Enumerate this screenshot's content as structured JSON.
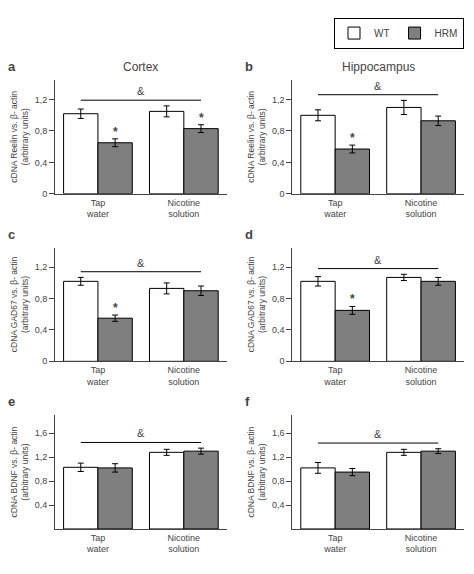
{
  "chart_data": [
    {
      "type": "bar",
      "title": "Cortex",
      "ylabel": "cDNA Reelin vs. β- actin\n(arbitrary units)",
      "categories": [
        "Tap\nwater",
        "Nicotine\nsolution"
      ],
      "series": [
        {
          "name": "WT",
          "color": "#ffffff",
          "values": [
            1.02,
            1.05
          ],
          "errors": [
            0.06,
            0.07
          ]
        },
        {
          "name": "HRM",
          "color": "#7f7f7f",
          "values": [
            0.65,
            0.83
          ],
          "errors": [
            0.05,
            0.05
          ]
        }
      ],
      "ylim": [
        0,
        1.45
      ],
      "yticks": [
        0,
        {
          "value": 0.4,
          "label": "0,4"
        },
        {
          "value": 0.8,
          "label": "0,8"
        },
        {
          "value": 1.2,
          "label": "1,2"
        }
      ],
      "grid": false,
      "annotations": [
        {
          "text": "a"
        },
        {
          "text": "*",
          "series": "HRM",
          "category": "Tap\nwater"
        },
        {
          "text": "*",
          "series": "HRM",
          "category": "Nicotine\nsolution"
        },
        {
          "text": "&",
          "categories": [
            "Tap\nwater",
            "Nicotine\nsolution"
          ]
        }
      ]
    },
    {
      "type": "bar",
      "title": "Hippocampus",
      "ylabel": "cDNA Reelin vs. β- actin\n(arbitrary units)",
      "categories": [
        "Tap\nwater",
        "Nicotine\nsolution"
      ],
      "series": [
        {
          "name": "WT",
          "color": "#ffffff",
          "values": [
            1.0,
            1.1
          ],
          "errors": [
            0.07,
            0.09
          ]
        },
        {
          "name": "HRM",
          "color": "#7f7f7f",
          "values": [
            0.57,
            0.93
          ],
          "errors": [
            0.05,
            0.06
          ]
        }
      ],
      "ylim": [
        0,
        1.45
      ],
      "yticks": [
        0,
        {
          "value": 0.4,
          "label": "0,4"
        },
        {
          "value": 0.8,
          "label": "0,8"
        },
        {
          "value": 1.2,
          "label": "1,2"
        }
      ],
      "grid": false,
      "legend": "upper right",
      "annotations": [
        {
          "text": "b"
        },
        {
          "text": "*",
          "series": "HRM",
          "category": "Tap\nwater"
        },
        {
          "text": "&",
          "categories": [
            "Tap\nwater",
            "Nicotine\nsolution"
          ]
        }
      ]
    },
    {
      "type": "bar",
      "ylabel": "cDNA GAD67 vs. β- actin\n(arbitrary units)",
      "categories": [
        "Tap\nwater",
        "Nicotine\nsolution"
      ],
      "series": [
        {
          "name": "WT",
          "color": "#ffffff",
          "values": [
            1.02,
            0.93
          ],
          "errors": [
            0.05,
            0.07
          ]
        },
        {
          "name": "HRM",
          "color": "#7f7f7f",
          "values": [
            0.55,
            0.9
          ],
          "errors": [
            0.04,
            0.06
          ]
        }
      ],
      "ylim": [
        0,
        1.45
      ],
      "yticks": [
        0,
        {
          "value": 0.4,
          "label": "0,4"
        },
        {
          "value": 0.8,
          "label": "0,8"
        },
        {
          "value": 1.2,
          "label": "1,2"
        }
      ],
      "grid": false,
      "annotations": [
        {
          "text": "c"
        },
        {
          "text": "*",
          "series": "HRM",
          "category": "Tap\nwater"
        },
        {
          "text": "&",
          "categories": [
            "Tap\nwater",
            "Nicotine\nsolution"
          ]
        }
      ]
    },
    {
      "type": "bar",
      "ylabel": "cDNA GAD67 vs. β- actin\n(arbitrary units)",
      "categories": [
        "Tap\nwater",
        "Nicotine\nsolution"
      ],
      "series": [
        {
          "name": "WT",
          "color": "#ffffff",
          "values": [
            1.02,
            1.07
          ],
          "errors": [
            0.06,
            0.04
          ]
        },
        {
          "name": "HRM",
          "color": "#7f7f7f",
          "values": [
            0.65,
            1.02
          ],
          "errors": [
            0.05,
            0.05
          ]
        }
      ],
      "ylim": [
        0,
        1.45
      ],
      "yticks": [
        0,
        {
          "value": 0.4,
          "label": "0,4"
        },
        {
          "value": 0.8,
          "label": "0,8"
        },
        {
          "value": 1.2,
          "label": "1,2"
        }
      ],
      "grid": false,
      "annotations": [
        {
          "text": "d"
        },
        {
          "text": "*",
          "series": "HRM",
          "category": "Tap\nwater"
        },
        {
          "text": "&",
          "categories": [
            "Tap\nwater",
            "Nicotine\nsolution"
          ]
        }
      ]
    },
    {
      "type": "bar",
      "ylabel": "cDNA BDNF vs. β- actin\n(arbitrary units)",
      "categories": [
        "Tap\nwater",
        "Nicotine\nsolution"
      ],
      "series": [
        {
          "name": "WT",
          "color": "#ffffff",
          "values": [
            1.03,
            1.28
          ],
          "errors": [
            0.07,
            0.05
          ]
        },
        {
          "name": "HRM",
          "color": "#7f7f7f",
          "values": [
            1.02,
            1.3
          ],
          "errors": [
            0.07,
            0.05
          ]
        }
      ],
      "ylim": [
        0,
        1.9
      ],
      "yticks": [
        {
          "value": 0.4,
          "label": "0,4"
        },
        {
          "value": 0.8,
          "label": "0,8"
        },
        {
          "value": 1.2,
          "label": "1,2"
        },
        {
          "value": 1.6,
          "label": "1,6"
        }
      ],
      "grid": false,
      "annotations": [
        {
          "text": "e"
        },
        {
          "text": "&",
          "categories": [
            "Tap\nwater",
            "Nicotine\nsolution"
          ]
        }
      ]
    },
    {
      "type": "bar",
      "ylabel": "cDNA BDNF vs. β- actin\n(arbitrary units)",
      "categories": [
        "Tap\nwater",
        "Nicotine\nsolution"
      ],
      "series": [
        {
          "name": "WT",
          "color": "#ffffff",
          "values": [
            1.02,
            1.28
          ],
          "errors": [
            0.09,
            0.05
          ]
        },
        {
          "name": "HRM",
          "color": "#7f7f7f",
          "values": [
            0.95,
            1.3
          ],
          "errors": [
            0.06,
            0.04
          ]
        }
      ],
      "ylim": [
        0,
        1.9
      ],
      "yticks": [
        {
          "value": 0.4,
          "label": "0,4"
        },
        {
          "value": 0.8,
          "label": "0,8"
        },
        {
          "value": 1.2,
          "label": "1,2"
        },
        {
          "value": 1.6,
          "label": "1,6"
        }
      ],
      "grid": false,
      "annotations": [
        {
          "text": "f"
        },
        {
          "text": "&",
          "categories": [
            "Tap\nwater",
            "Nicotine\nsolution"
          ]
        }
      ]
    }
  ]
}
